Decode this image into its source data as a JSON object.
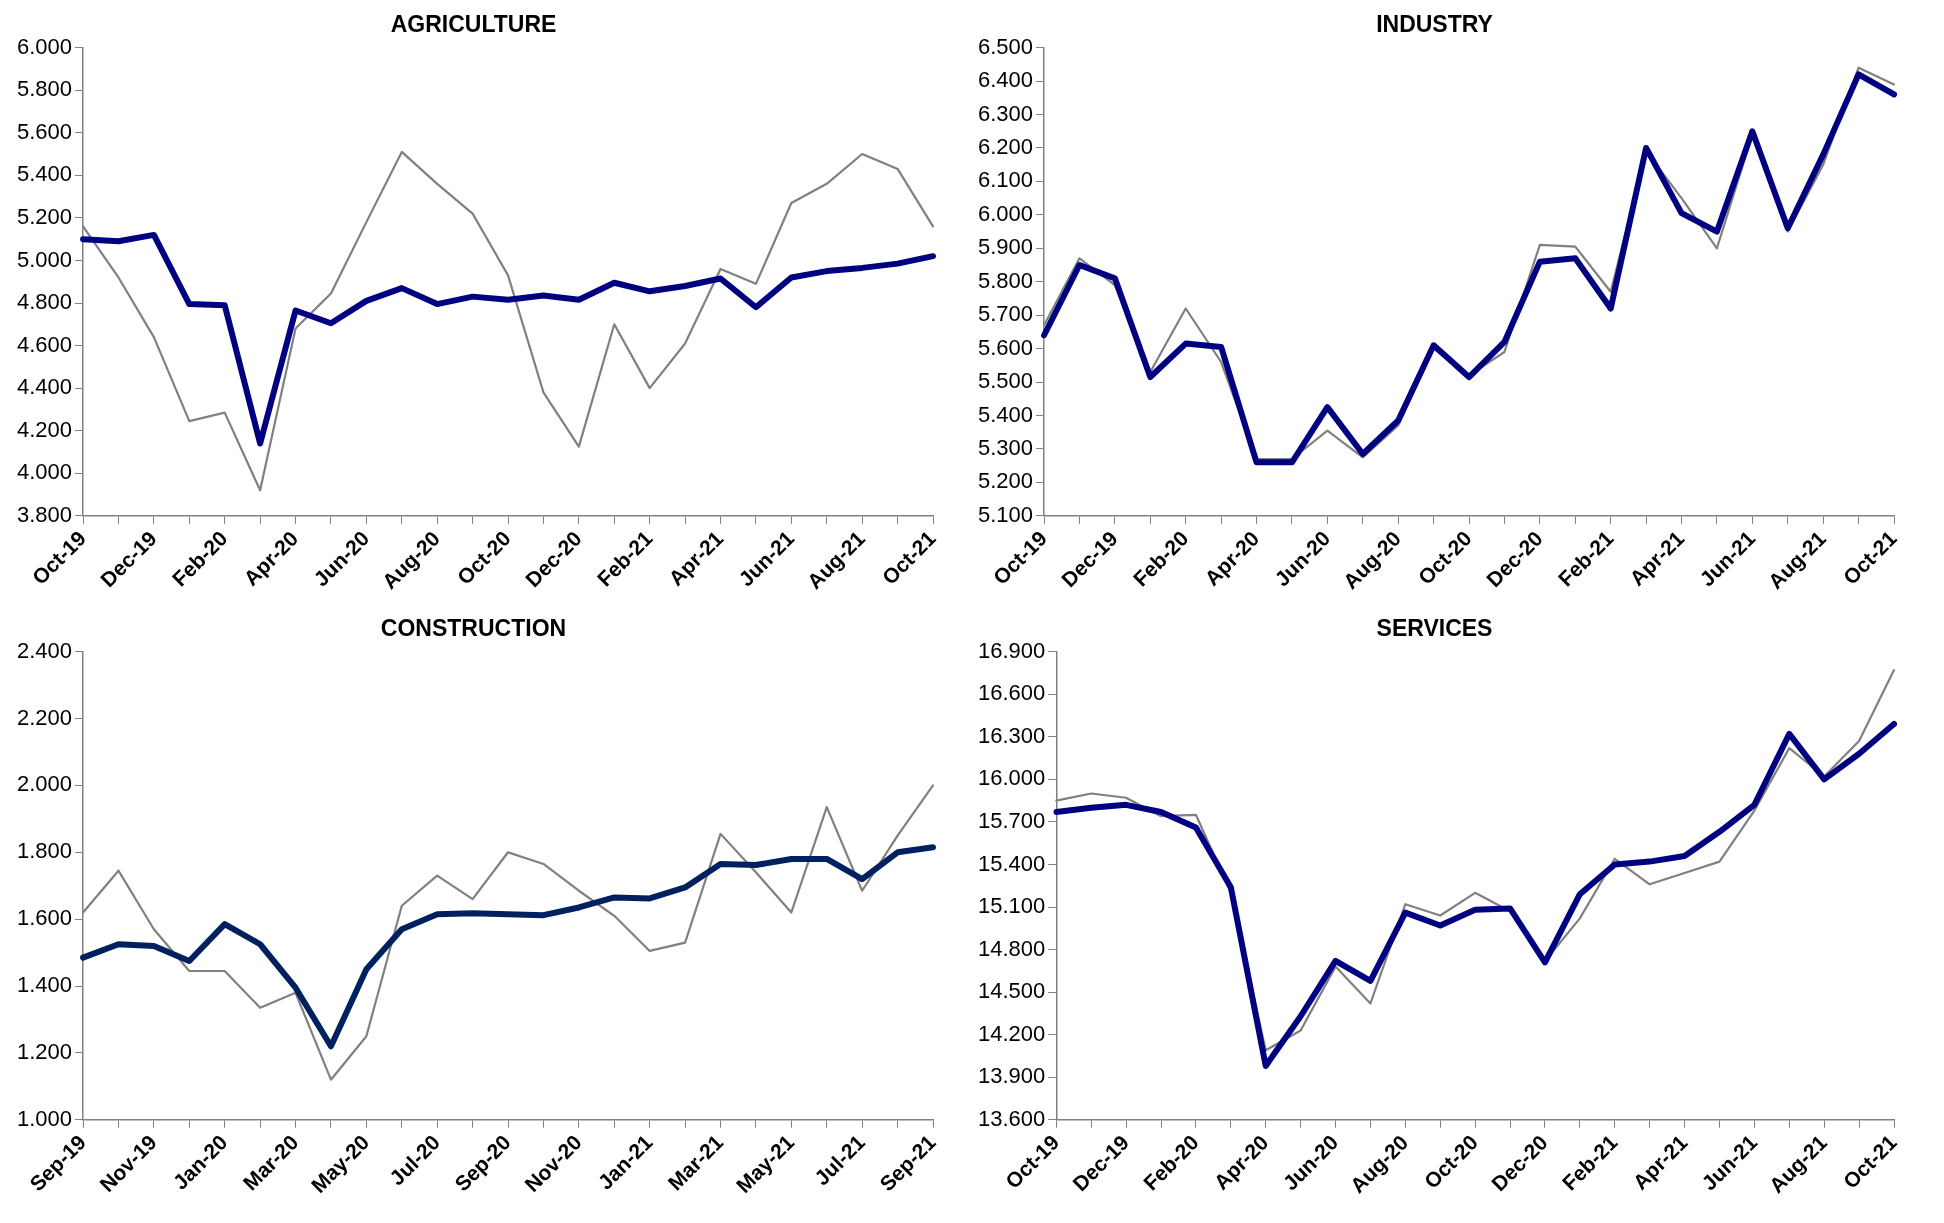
{
  "chart_data": [
    {
      "type": "line",
      "title": "AGRICULTURE",
      "grid": false,
      "legend": false,
      "marker": "none",
      "line_style": "solid",
      "categories": [
        "Oct-19",
        null,
        "Dec-19",
        null,
        "Feb-20",
        null,
        "Apr-20",
        null,
        "Jun-20",
        null,
        "Aug-20",
        null,
        "Oct-20",
        null,
        "Dec-20",
        null,
        "Feb-21",
        null,
        "Apr-21",
        null,
        "Jun-21",
        null,
        "Aug-21",
        null,
        "Oct-21"
      ],
      "ylim": [
        3800,
        6000
      ],
      "yticks": [
        {
          "value": 3800,
          "label": "3.800"
        },
        {
          "value": 4000,
          "label": "4.000"
        },
        {
          "value": 4200,
          "label": "4.200"
        },
        {
          "value": 4400,
          "label": "4.400"
        },
        {
          "value": 4600,
          "label": "4.600"
        },
        {
          "value": 4800,
          "label": "4.800"
        },
        {
          "value": 5000,
          "label": "5.000"
        },
        {
          "value": 5200,
          "label": "5.200"
        },
        {
          "value": 5400,
          "label": "5.400"
        },
        {
          "value": 5600,
          "label": "5.600"
        },
        {
          "value": 5800,
          "label": "5.800"
        },
        {
          "value": 6000,
          "label": "6.000"
        }
      ],
      "series": [
        {
          "color": "#000080",
          "values": [
            5100,
            5090,
            5120,
            4795,
            4790,
            4140,
            4765,
            4705,
            4810,
            4870,
            4795,
            4830,
            4815,
            4835,
            4815,
            4895,
            4855,
            4880,
            4915,
            4780,
            4920,
            4950,
            4965,
            4985,
            5020
          ]
        },
        {
          "color": "#808080",
          "values": [
            5160,
            4920,
            4640,
            4245,
            4285,
            3920,
            4680,
            4845,
            5180,
            5510,
            5360,
            5220,
            4930,
            4380,
            4125,
            4700,
            4400,
            4610,
            4960,
            4890,
            5270,
            5360,
            5500,
            5430,
            5160
          ]
        }
      ]
    },
    {
      "type": "line",
      "title": "INDUSTRY",
      "grid": false,
      "legend": false,
      "marker": "none",
      "line_style": "solid",
      "categories": [
        "Oct-19",
        null,
        "Dec-19",
        null,
        "Feb-20",
        null,
        "Apr-20",
        null,
        "Jun-20",
        null,
        "Aug-20",
        null,
        "Oct-20",
        null,
        "Dec-20",
        null,
        "Feb-21",
        null,
        "Apr-21",
        null,
        "Jun-21",
        null,
        "Aug-21",
        null,
        "Oct-21"
      ],
      "ylim": [
        5100,
        6500
      ],
      "yticks": [
        {
          "value": 5100,
          "label": "5.100"
        },
        {
          "value": 5200,
          "label": "5.200"
        },
        {
          "value": 5300,
          "label": "5.300"
        },
        {
          "value": 5400,
          "label": "5.400"
        },
        {
          "value": 5500,
          "label": "5.500"
        },
        {
          "value": 5600,
          "label": "5.600"
        },
        {
          "value": 5700,
          "label": "5.700"
        },
        {
          "value": 5800,
          "label": "5.800"
        },
        {
          "value": 5900,
          "label": "5.900"
        },
        {
          "value": 6000,
          "label": "6.000"
        },
        {
          "value": 6100,
          "label": "6.100"
        },
        {
          "value": 6200,
          "label": "6.200"
        },
        {
          "value": 6300,
          "label": "6.300"
        },
        {
          "value": 6400,
          "label": "6.400"
        },
        {
          "value": 6500,
          "label": "6.500"
        }
      ],
      "series": [
        {
          "color": "#000080",
          "values": [
            5640,
            5850,
            5810,
            5515,
            5615,
            5605,
            5260,
            5260,
            5425,
            5285,
            5385,
            5610,
            5515,
            5620,
            5860,
            5870,
            5720,
            6200,
            6005,
            5950,
            6250,
            5960,
            6180,
            6420,
            6360
          ]
        },
        {
          "color": "#808080",
          "values": [
            5670,
            5870,
            5790,
            5530,
            5720,
            5560,
            5270,
            5270,
            5355,
            5275,
            5370,
            5600,
            5520,
            5590,
            5910,
            5905,
            5770,
            6190,
            6050,
            5900,
            6240,
            5950,
            6150,
            6440,
            6390
          ]
        }
      ]
    },
    {
      "type": "line",
      "title": "CONSTRUCTION",
      "grid": false,
      "legend": false,
      "marker": "none",
      "line_style": "solid",
      "categories": [
        "Sep-19",
        null,
        "Nov-19",
        null,
        "Jan-20",
        null,
        "Mar-20",
        null,
        "May-20",
        null,
        "Jul-20",
        null,
        "Sep-20",
        null,
        "Nov-20",
        null,
        "Jan-21",
        null,
        "Mar-21",
        null,
        "May-21",
        null,
        "Jul-21",
        null,
        "Sep-21"
      ],
      "ylim": [
        1000,
        2400
      ],
      "yticks": [
        {
          "value": 1000,
          "label": "1.000"
        },
        {
          "value": 1200,
          "label": "1.200"
        },
        {
          "value": 1400,
          "label": "1.400"
        },
        {
          "value": 1600,
          "label": "1.600"
        },
        {
          "value": 1800,
          "label": "1.800"
        },
        {
          "value": 2000,
          "label": "2.000"
        },
        {
          "value": 2200,
          "label": "2.200"
        },
        {
          "value": 2400,
          "label": "2.400"
        }
      ],
      "series": [
        {
          "color": "#002060",
          "values": [
            1485,
            1525,
            1520,
            1475,
            1585,
            1525,
            1395,
            1220,
            1450,
            1570,
            1615,
            1618,
            1615,
            1612,
            1635,
            1665,
            1662,
            1695,
            1765,
            1762,
            1780,
            1780,
            1720,
            1800,
            1815
          ]
        },
        {
          "color": "#808080",
          "values": [
            1620,
            1745,
            1570,
            1445,
            1445,
            1335,
            1380,
            1120,
            1250,
            1640,
            1730,
            1660,
            1800,
            1765,
            1685,
            1610,
            1505,
            1530,
            1855,
            1740,
            1620,
            1935,
            1685,
            1850,
            2000
          ]
        }
      ]
    },
    {
      "type": "line",
      "title": "SERVICES",
      "grid": false,
      "legend": false,
      "marker": "none",
      "line_style": "solid",
      "categories": [
        "Oct-19",
        null,
        "Dec-19",
        null,
        "Feb-20",
        null,
        "Apr-20",
        null,
        "Jun-20",
        null,
        "Aug-20",
        null,
        "Oct-20",
        null,
        "Dec-20",
        null,
        "Feb-21",
        null,
        "Apr-21",
        null,
        "Jun-21",
        null,
        "Aug-21",
        null,
        "Oct-21"
      ],
      "ylim": [
        13600,
        16900
      ],
      "yticks": [
        {
          "value": 13600,
          "label": "13.600"
        },
        {
          "value": 13900,
          "label": "13.900"
        },
        {
          "value": 14200,
          "label": "14.200"
        },
        {
          "value": 14500,
          "label": "14.500"
        },
        {
          "value": 14800,
          "label": "14.800"
        },
        {
          "value": 15100,
          "label": "15.100"
        },
        {
          "value": 15400,
          "label": "15.400"
        },
        {
          "value": 15700,
          "label": "15.700"
        },
        {
          "value": 16000,
          "label": "16.000"
        },
        {
          "value": 16300,
          "label": "16.300"
        },
        {
          "value": 16600,
          "label": "16.600"
        },
        {
          "value": 16900,
          "label": "16.900"
        }
      ],
      "series": [
        {
          "color": "#000080",
          "values": [
            15770,
            15800,
            15820,
            15770,
            15660,
            15240,
            13980,
            14330,
            14720,
            14580,
            15060,
            14970,
            15080,
            15090,
            14710,
            15190,
            15400,
            15420,
            15460,
            15630,
            15820,
            16320,
            16000,
            16180,
            16390
          ]
        },
        {
          "color": "#808080",
          "values": [
            15850,
            15900,
            15870,
            15740,
            15750,
            15200,
            14090,
            14230,
            14680,
            14420,
            15120,
            15040,
            15200,
            15070,
            14720,
            15020,
            15440,
            15260,
            15340,
            15420,
            15780,
            16220,
            16020,
            16270,
            16770
          ]
        }
      ]
    }
  ]
}
